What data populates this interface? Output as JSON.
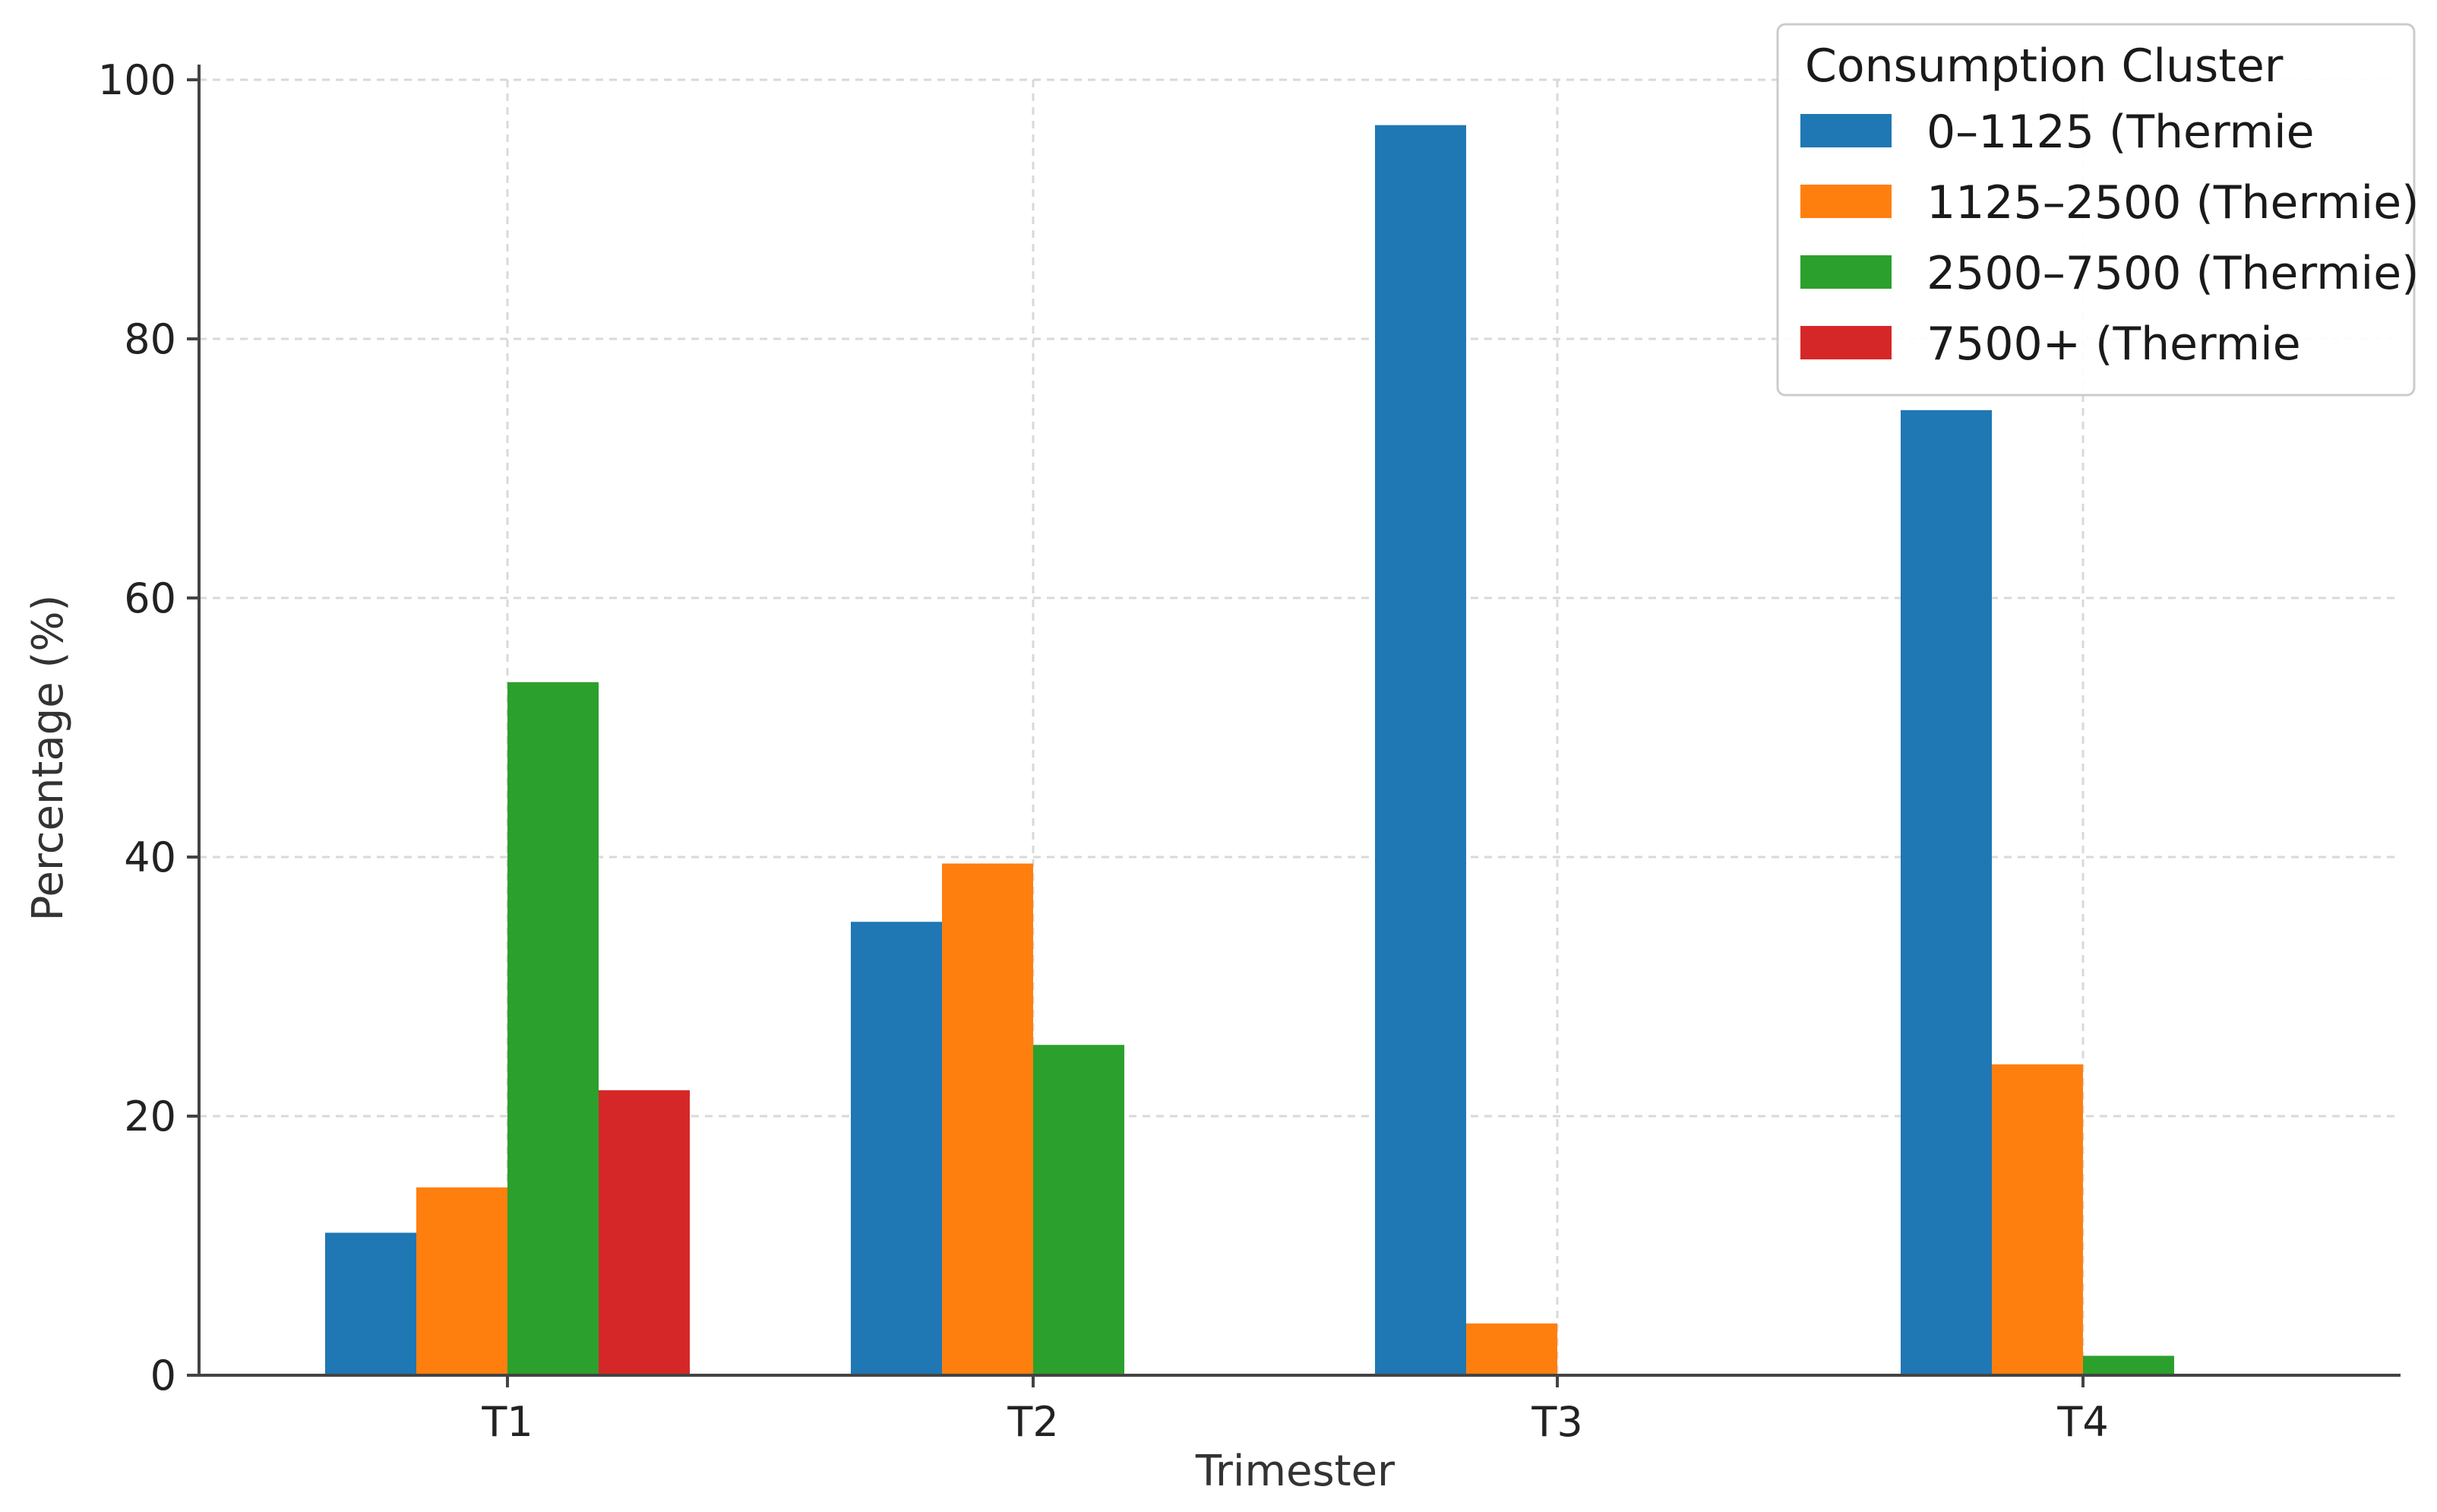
{
  "chart_data": {
    "type": "bar",
    "title": "",
    "xlabel": "Trimester",
    "ylabel": "Percentage (%)",
    "categories": [
      "T1",
      "T2",
      "T3",
      "T4"
    ],
    "ylim": [
      0,
      100
    ],
    "yticks": [
      0,
      20,
      40,
      60,
      80,
      100
    ],
    "grid": true,
    "legend": {
      "title": "Consumption Cluster",
      "placement": "top-right"
    },
    "series": [
      {
        "name": "0–1125 (Thermie",
        "color": "#1f77b4",
        "values": [
          11,
          35,
          96.5,
          74.5
        ]
      },
      {
        "name": "1125–2500 (Thermie)",
        "color": "#ff7f0e",
        "values": [
          14.5,
          39.5,
          4,
          24
        ]
      },
      {
        "name": "2500–7500 (Thermie)",
        "color": "#2ca02c",
        "values": [
          53.5,
          25.5,
          0,
          1.5
        ]
      },
      {
        "name": "7500+ (Thermie",
        "color": "#d62728",
        "values": [
          22,
          0,
          0,
          0
        ]
      }
    ]
  }
}
